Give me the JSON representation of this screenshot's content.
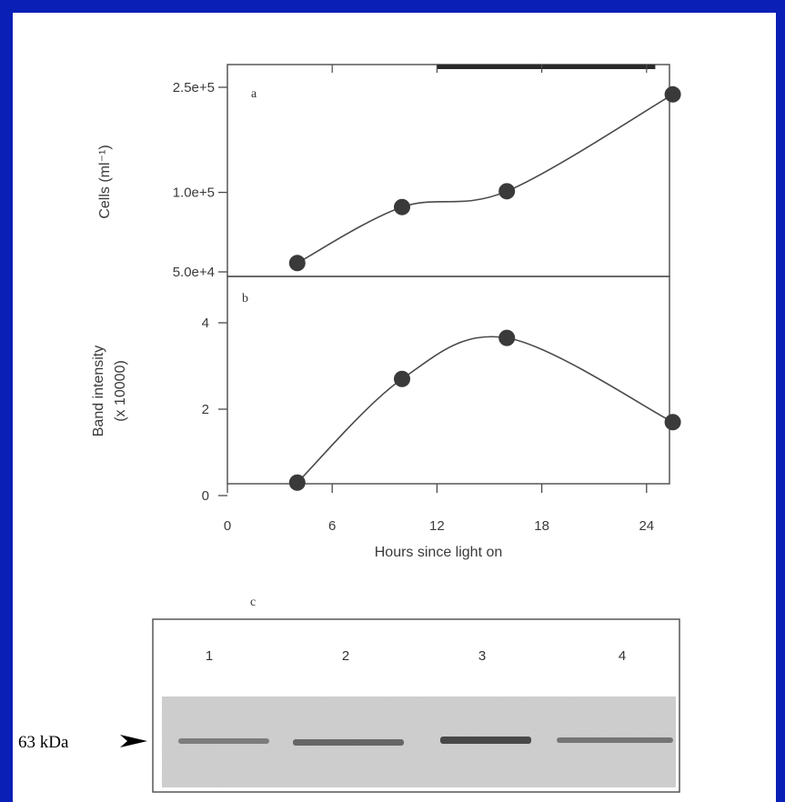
{
  "chart_data": [
    {
      "panel": "a",
      "type": "line",
      "panel_label": "a",
      "ylabel": "Cells (ml⁻¹)",
      "xlabel": "",
      "y_scale": "log",
      "ylim": [
        50000,
        250000
      ],
      "xlim": [
        0,
        27
      ],
      "y_ticks": [
        50000,
        100000,
        250000
      ],
      "y_tick_labels": [
        "5.0e+4",
        "1.0e+5",
        "2.5e+5"
      ],
      "dark_period_bar": [
        12,
        24.5
      ],
      "series": [
        {
          "x": [
            4,
            10,
            16,
            25.5
          ],
          "y": [
            54000,
            88000,
            101000,
            235000
          ]
        }
      ],
      "point_color": "#3a3a3a",
      "line_color": "#4a4a4a"
    },
    {
      "panel": "b",
      "type": "line",
      "panel_label": "b",
      "ylabel": "Band intensity",
      "ylabel2": "(x 10000)",
      "xlabel": "Hours since light on",
      "ylim": [
        0,
        4.6
      ],
      "xlim": [
        0,
        27
      ],
      "y_ticks": [
        0,
        2,
        4
      ],
      "y_tick_labels": [
        "0",
        "2",
        "4"
      ],
      "x_ticks": [
        0,
        6,
        12,
        18,
        24
      ],
      "x_tick_labels": [
        "0",
        "6",
        "12",
        "18",
        "24"
      ],
      "series": [
        {
          "x": [
            4,
            10,
            16,
            25.5
          ],
          "y": [
            0.3,
            2.7,
            3.65,
            1.7
          ]
        }
      ],
      "point_color": "#3a3a3a",
      "line_color": "#4a4a4a"
    }
  ],
  "blot": {
    "panel_label": "c",
    "lanes": [
      "1",
      "2",
      "3",
      "4"
    ],
    "band_intensity": [
      0.55,
      0.7,
      0.9,
      0.6
    ],
    "marker_label": "63 kDa"
  },
  "colors": {
    "background": "#0a1fb5",
    "frame": "#ffffff",
    "ink": "#3a3a3a"
  }
}
